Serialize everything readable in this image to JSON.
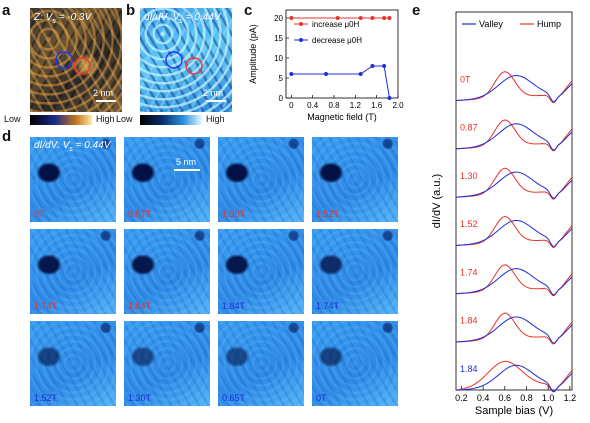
{
  "panel_labels": {
    "a": "a",
    "b": "b",
    "c": "c",
    "d": "d",
    "e": "e"
  },
  "panel_a": {
    "title": "Z: V",
    "sub": "s",
    "value": " = -0.3V",
    "scalebar": "2 nm",
    "colorbar": {
      "low": "Low",
      "high": "High"
    }
  },
  "panel_b": {
    "title": "dI/dV: V",
    "sub": "s",
    "value": " = 0.44V",
    "scalebar": "2 nm",
    "colorbar": {
      "low": "Low",
      "high": "High"
    }
  },
  "panel_d": {
    "title": "dI/dV: V",
    "sub": "s",
    "value": " = 0.44V",
    "scalebar": "5 nm",
    "tiles": [
      {
        "label": "0T",
        "color": "#e8332b"
      },
      {
        "label": "0.87T",
        "color": "#e8332b"
      },
      {
        "label": "1.30T",
        "color": "#e8332b"
      },
      {
        "label": "1.52T",
        "color": "#e8332b"
      },
      {
        "label": "1.74T",
        "color": "#e8332b"
      },
      {
        "label": "1.84T",
        "color": "#e8332b"
      },
      {
        "label": "1.84T",
        "color": "#1e2fd6"
      },
      {
        "label": "1.74T",
        "color": "#1e2fd6"
      },
      {
        "label": "1.52T",
        "color": "#1e2fd6"
      },
      {
        "label": "1.30T",
        "color": "#1e2fd6"
      },
      {
        "label": "0.65T",
        "color": "#1e2fd6"
      },
      {
        "label": "0T",
        "color": "#1e2fd6"
      }
    ]
  },
  "chart_data": [
    {
      "type": "line",
      "panel": "c",
      "xlabel": "Magnetic field (T)",
      "ylabel": "Amplitude (pA)",
      "xlim": [
        -0.1,
        2.0
      ],
      "ylim": [
        0,
        22
      ],
      "xticks": [
        "0",
        "0.4",
        "0.8",
        "1.2",
        "1.6",
        "2.0"
      ],
      "yticks": [
        "0",
        "5",
        "10",
        "15",
        "20"
      ],
      "series": [
        {
          "name": "increase μ0H",
          "color": "#e8332b",
          "x": [
            0,
            0.87,
            1.3,
            1.52,
            1.74,
            1.84
          ],
          "y": [
            20,
            20,
            20,
            20,
            20,
            20
          ]
        },
        {
          "name": "decrease μ0H",
          "color": "#1e2fd6",
          "x": [
            1.84,
            1.74,
            1.52,
            1.3,
            0.65,
            0
          ],
          "y": [
            0,
            8,
            8,
            6,
            6,
            6
          ]
        }
      ],
      "legend": "top-right"
    },
    {
      "type": "line",
      "panel": "e",
      "xlabel": "Sample bias (V)",
      "ylabel": "dI/dV (a.u.)",
      "xlim": [
        0.15,
        1.22
      ],
      "xticks": [
        "0.2",
        "0.4",
        "0.6",
        "0.8",
        "1.0",
        "1.2"
      ],
      "legend_entries": [
        {
          "name": "Valley",
          "color": "#1e2fd6"
        },
        {
          "name": "Hump",
          "color": "#e8332b"
        }
      ],
      "field_labels": [
        {
          "label": "0T",
          "color": "#e8332b"
        },
        {
          "label": "0.87",
          "color": "#e8332b"
        },
        {
          "label": "1.30",
          "color": "#e8332b"
        },
        {
          "label": "1.52",
          "color": "#e8332b"
        },
        {
          "label": "1.74",
          "color": "#e8332b"
        },
        {
          "label": "1.84",
          "color": "#e8332b"
        },
        {
          "label": "1.84",
          "color": "#1e2fd6"
        }
      ]
    }
  ]
}
